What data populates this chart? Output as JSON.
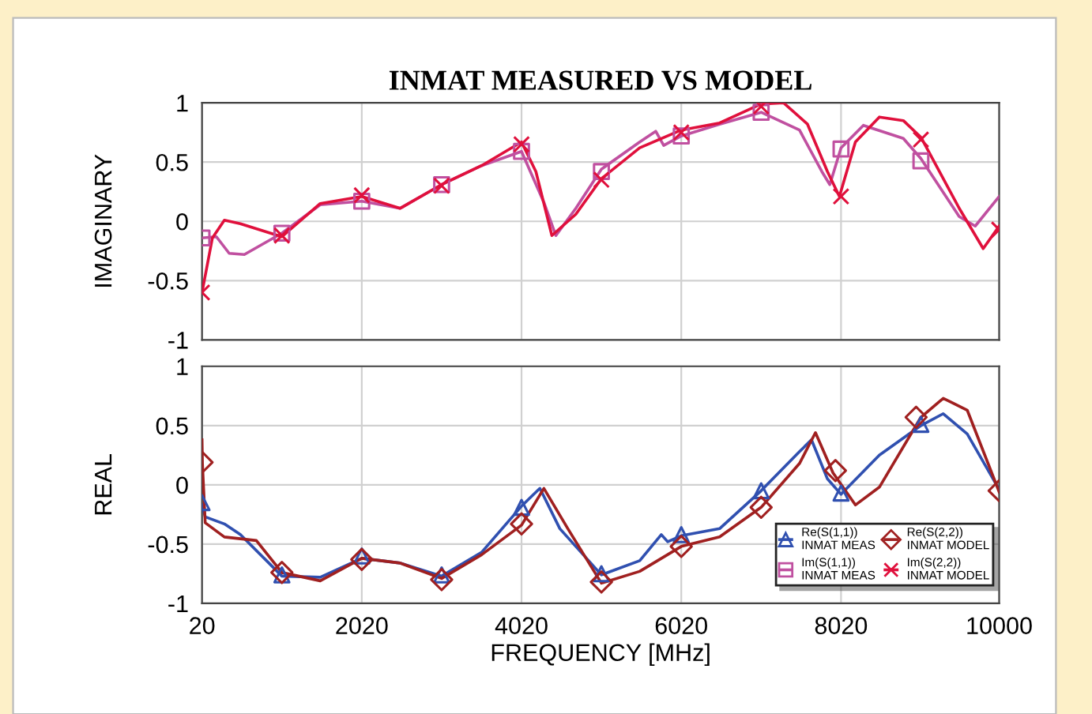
{
  "chart_data": [
    {
      "type": "line",
      "title": "INMAT MEASURED VS MODEL",
      "ylabel": "IMAGINARY",
      "xlim": [
        20,
        10000
      ],
      "xticks": [
        20,
        2020,
        4020,
        6020,
        8020,
        10000
      ],
      "ylim": [
        -1,
        1
      ],
      "yticks": [
        -1,
        -0.5,
        0,
        0.5,
        1
      ],
      "tick_labels": "y",
      "grid": true,
      "line_style": "solid",
      "legend": "bottom",
      "series": [
        {
          "name": "Im(S(1,1))\nINMAT MEAS",
          "color": "#c050a0",
          "x": [
            20,
            200,
            360,
            550,
            1020,
            1500,
            2020,
            2500,
            3020,
            3520,
            4020,
            4300,
            4450,
            4700,
            5020,
            5500,
            5700,
            5800,
            6020,
            6500,
            7020,
            7500,
            7780,
            7880,
            8020,
            8300,
            8800,
            9020,
            9500,
            9700,
            10000
          ],
          "values": [
            -0.14,
            -0.13,
            -0.27,
            -0.28,
            -0.1,
            0.14,
            0.17,
            0.11,
            0.31,
            0.47,
            0.59,
            0.16,
            -0.12,
            0.11,
            0.44,
            0.67,
            0.76,
            0.64,
            0.72,
            0.82,
            0.92,
            0.77,
            0.42,
            0.31,
            0.62,
            0.81,
            0.7,
            0.53,
            0.04,
            -0.04,
            0.21
          ]
        },
        {
          "type": "scatter",
          "color": "#c050a0",
          "marker": "square",
          "x": [
            20,
            1020,
            2020,
            3020,
            4020,
            5020,
            6020,
            7020,
            8020,
            9020
          ],
          "values": [
            -0.14,
            -0.1,
            0.17,
            0.31,
            0.59,
            0.42,
            0.72,
            0.92,
            0.61,
            0.51
          ]
        },
        {
          "name": "Im(S(2,2))\nINMAT MODEL",
          "color": "#e0103c",
          "x": [
            20,
            150,
            300,
            500,
            1020,
            1500,
            2020,
            2500,
            3020,
            3520,
            4020,
            4200,
            4400,
            4700,
            5020,
            5500,
            6020,
            6500,
            7020,
            7300,
            7600,
            7850,
            8000,
            8200,
            8500,
            8800,
            9020,
            9500,
            9800,
            10000
          ],
          "values": [
            -0.6,
            -0.14,
            0.01,
            -0.02,
            -0.13,
            0.15,
            0.21,
            0.11,
            0.31,
            0.47,
            0.67,
            0.42,
            -0.12,
            0.06,
            0.36,
            0.62,
            0.77,
            0.83,
            0.99,
            1.0,
            0.82,
            0.42,
            0.21,
            0.67,
            0.88,
            0.85,
            0.71,
            0.11,
            -0.23,
            -0.04
          ]
        },
        {
          "type": "scatter",
          "color": "#e0103c",
          "marker": "cross",
          "x": [
            20,
            1020,
            2020,
            3020,
            4020,
            5020,
            6020,
            7020,
            8020,
            9020,
            10000
          ],
          "values": [
            -0.6,
            -0.12,
            0.22,
            0.3,
            0.65,
            0.35,
            0.75,
            0.97,
            0.21,
            0.69,
            -0.07
          ]
        }
      ]
    },
    {
      "type": "line",
      "ylabel": "REAL",
      "xlabel": "FREQUENCY [MHz]",
      "xlim": [
        20,
        10000
      ],
      "xticks": [
        20,
        2020,
        4020,
        6020,
        8020,
        10000
      ],
      "ylim": [
        -1,
        1
      ],
      "yticks": [
        -1,
        -0.5,
        0,
        0.5,
        1
      ],
      "grid": true,
      "line_style": "solid",
      "legend": "bottom right",
      "series": [
        {
          "name": "Re(S(1,1))\nINMAT MEAS",
          "color": "#3050b0",
          "x": [
            20,
            60,
            300,
            500,
            1020,
            1500,
            2020,
            2500,
            3020,
            3520,
            4020,
            4250,
            4500,
            5020,
            5500,
            5770,
            5850,
            6020,
            6500,
            7020,
            7500,
            7650,
            7850,
            8020,
            8500,
            9020,
            9300,
            9600,
            10000
          ],
          "values": [
            -0.17,
            -0.27,
            -0.33,
            -0.42,
            -0.77,
            -0.78,
            -0.62,
            -0.66,
            -0.77,
            -0.57,
            -0.18,
            -0.03,
            -0.37,
            -0.76,
            -0.64,
            -0.42,
            -0.48,
            -0.43,
            -0.37,
            -0.05,
            0.28,
            0.38,
            0.05,
            -0.08,
            0.25,
            0.5,
            0.6,
            0.43,
            -0.04
          ]
        },
        {
          "type": "scatter",
          "color": "#3050b0",
          "marker": "triangle",
          "x": [
            20,
            1020,
            2020,
            3020,
            4020,
            5020,
            6020,
            7020,
            8020,
            9020
          ],
          "values": [
            -0.15,
            -0.76,
            -0.6,
            -0.76,
            -0.19,
            -0.75,
            -0.42,
            -0.05,
            -0.07,
            0.51
          ]
        },
        {
          "name": "Re(S(2,2))\nINMAT MODEL",
          "color": "#a02020",
          "x": [
            20,
            25,
            60,
            300,
            700,
            1020,
            1500,
            2020,
            2500,
            3020,
            3520,
            4020,
            4300,
            4600,
            5020,
            5500,
            6020,
            6500,
            7020,
            7500,
            7700,
            7920,
            8200,
            8500,
            9020,
            9300,
            9600,
            10000
          ],
          "values": [
            0.38,
            0.18,
            -0.32,
            -0.44,
            -0.47,
            -0.74,
            -0.81,
            -0.62,
            -0.66,
            -0.79,
            -0.59,
            -0.34,
            -0.03,
            -0.37,
            -0.83,
            -0.73,
            -0.52,
            -0.44,
            -0.19,
            0.18,
            0.44,
            0.1,
            -0.17,
            -0.02,
            0.57,
            0.73,
            0.63,
            -0.06
          ]
        },
        {
          "type": "scatter",
          "color": "#a02020",
          "marker": "diamond",
          "x": [
            20,
            1020,
            2020,
            3020,
            4020,
            5020,
            6020,
            7020,
            7950,
            8960,
            10000
          ],
          "values": [
            0.19,
            -0.74,
            -0.63,
            -0.8,
            -0.33,
            -0.82,
            -0.52,
            -0.19,
            0.12,
            0.57,
            -0.05
          ]
        }
      ]
    }
  ]
}
